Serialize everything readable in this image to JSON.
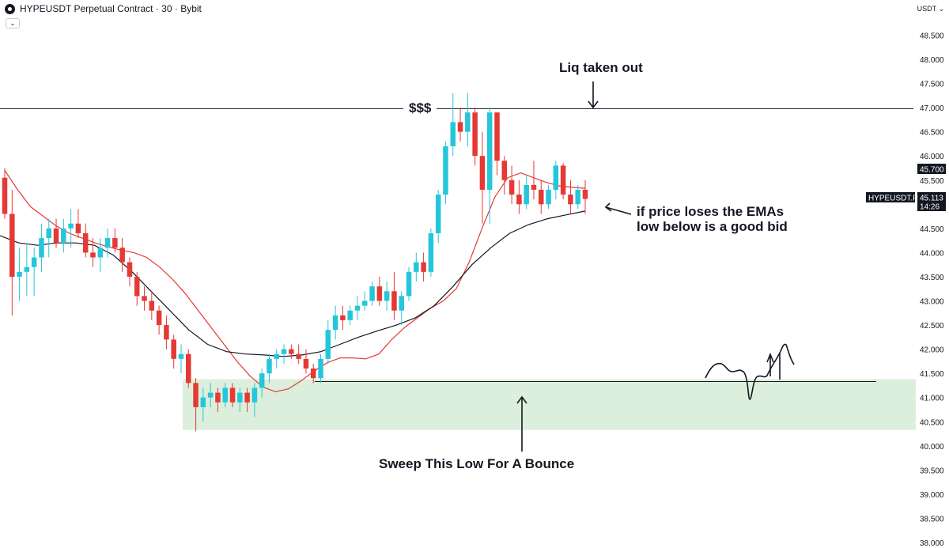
{
  "header": {
    "symbol_title": "HYPEUSDT Perpetual Contract · 30 · Bybit",
    "currency": "USDT"
  },
  "chart_data": {
    "type": "candlestick",
    "symbol": "HYPEUSDT",
    "exchange": "Bybit",
    "interval": "30",
    "ylim": [
      38.0,
      48.9
    ],
    "y_ticks": [
      "48.500",
      "48.000",
      "47.500",
      "47.000",
      "46.500",
      "46.000",
      "45.500",
      "45.000",
      "44.500",
      "44.000",
      "43.500",
      "43.000",
      "42.500",
      "42.000",
      "41.500",
      "41.000",
      "40.500",
      "40.000",
      "39.500",
      "39.000",
      "38.500",
      "38.000"
    ],
    "price_labels": [
      {
        "text": "45.700",
        "value": 45.7,
        "bg": "#131722",
        "fg": "#ffffff"
      },
      {
        "text": "45.113",
        "value": 45.113,
        "bg": "#131722",
        "fg": "#ffffff"
      },
      {
        "text": "14:26",
        "value": 44.99,
        "bg": "#131722",
        "fg": "#ffffff"
      }
    ],
    "symbol_tag": "HYPEUSDT.P",
    "colors": {
      "up": "#26c6da",
      "down": "#e53935",
      "ema_fast": "#e53935",
      "ema_slow": "#131722",
      "zone": "#dcefdc"
    },
    "candles": [
      [
        45.55,
        45.75,
        44.7,
        44.8
      ],
      [
        44.8,
        45.3,
        42.7,
        43.5
      ],
      [
        43.5,
        44.1,
        43.0,
        43.6
      ],
      [
        43.6,
        44.2,
        43.1,
        43.7
      ],
      [
        43.7,
        44.1,
        43.1,
        43.9
      ],
      [
        43.9,
        44.6,
        43.6,
        44.3
      ],
      [
        44.3,
        44.7,
        43.9,
        44.5
      ],
      [
        44.5,
        44.7,
        44.1,
        44.2
      ],
      [
        44.2,
        44.7,
        44.0,
        44.5
      ],
      [
        44.5,
        44.9,
        44.1,
        44.6
      ],
      [
        44.6,
        44.9,
        44.3,
        44.4
      ],
      [
        44.4,
        44.6,
        43.9,
        44.0
      ],
      [
        44.0,
        44.3,
        43.7,
        43.9
      ],
      [
        43.9,
        44.3,
        43.6,
        44.1
      ],
      [
        44.1,
        44.5,
        43.9,
        44.3
      ],
      [
        44.3,
        44.5,
        44.0,
        44.1
      ],
      [
        44.1,
        44.3,
        43.6,
        43.8
      ],
      [
        43.8,
        43.9,
        43.3,
        43.5
      ],
      [
        43.5,
        43.6,
        42.9,
        43.1
      ],
      [
        43.1,
        43.3,
        42.8,
        43.0
      ],
      [
        43.0,
        43.2,
        42.6,
        42.8
      ],
      [
        42.8,
        42.9,
        42.3,
        42.5
      ],
      [
        42.5,
        42.7,
        42.0,
        42.2
      ],
      [
        42.2,
        42.3,
        41.6,
        41.8
      ],
      [
        41.8,
        42.1,
        41.5,
        41.9
      ],
      [
        41.9,
        42.0,
        41.2,
        41.3
      ],
      [
        41.3,
        41.4,
        40.3,
        40.8
      ],
      [
        40.8,
        41.2,
        40.5,
        41.0
      ],
      [
        41.0,
        41.3,
        40.8,
        41.1
      ],
      [
        41.1,
        41.2,
        40.7,
        40.9
      ],
      [
        40.9,
        41.3,
        40.8,
        41.2
      ],
      [
        41.2,
        41.3,
        40.8,
        40.9
      ],
      [
        40.9,
        41.2,
        40.7,
        41.1
      ],
      [
        41.1,
        41.2,
        40.7,
        40.9
      ],
      [
        40.9,
        41.3,
        40.6,
        41.2
      ],
      [
        41.2,
        41.6,
        41.0,
        41.5
      ],
      [
        41.5,
        41.9,
        41.3,
        41.8
      ],
      [
        41.8,
        42.0,
        41.6,
        41.9
      ],
      [
        41.9,
        42.1,
        41.7,
        42.0
      ],
      [
        42.0,
        42.1,
        41.8,
        41.9
      ],
      [
        41.9,
        42.1,
        41.7,
        41.8
      ],
      [
        41.8,
        42.0,
        41.5,
        41.6
      ],
      [
        41.6,
        41.7,
        41.3,
        41.4
      ],
      [
        41.4,
        41.9,
        41.3,
        41.8
      ],
      [
        41.8,
        42.6,
        41.7,
        42.4
      ],
      [
        42.4,
        42.9,
        42.2,
        42.7
      ],
      [
        42.7,
        42.9,
        42.4,
        42.6
      ],
      [
        42.6,
        42.9,
        42.5,
        42.8
      ],
      [
        42.8,
        43.1,
        42.6,
        42.9
      ],
      [
        42.9,
        43.2,
        42.8,
        43.0
      ],
      [
        43.0,
        43.4,
        42.9,
        43.3
      ],
      [
        43.3,
        43.5,
        42.9,
        43.0
      ],
      [
        43.0,
        43.4,
        42.8,
        43.2
      ],
      [
        43.2,
        43.6,
        42.6,
        42.8
      ],
      [
        42.8,
        43.2,
        42.5,
        43.1
      ],
      [
        43.1,
        43.7,
        43.0,
        43.6
      ],
      [
        43.6,
        44.0,
        43.4,
        43.8
      ],
      [
        43.8,
        44.0,
        43.4,
        43.6
      ],
      [
        43.6,
        44.5,
        43.5,
        44.4
      ],
      [
        44.4,
        45.3,
        44.2,
        45.2
      ],
      [
        45.2,
        46.3,
        45.0,
        46.2
      ],
      [
        46.2,
        47.3,
        46.0,
        46.7
      ],
      [
        46.7,
        47.0,
        46.3,
        46.5
      ],
      [
        46.5,
        47.3,
        46.2,
        46.9
      ],
      [
        46.9,
        47.0,
        45.8,
        46.0
      ],
      [
        46.0,
        46.5,
        44.6,
        45.3
      ],
      [
        45.3,
        47.0,
        44.6,
        46.9
      ],
      [
        46.9,
        46.9,
        45.6,
        45.9
      ],
      [
        45.9,
        46.0,
        45.2,
        45.5
      ],
      [
        45.5,
        45.8,
        45.0,
        45.2
      ],
      [
        45.2,
        45.5,
        44.8,
        45.0
      ],
      [
        45.0,
        45.6,
        44.9,
        45.4
      ],
      [
        45.4,
        45.9,
        45.1,
        45.3
      ],
      [
        45.3,
        45.5,
        44.8,
        45.0
      ],
      [
        45.0,
        45.4,
        44.9,
        45.3
      ],
      [
        45.3,
        45.9,
        45.1,
        45.8
      ],
      [
        45.8,
        45.85,
        45.1,
        45.2
      ],
      [
        45.2,
        45.5,
        44.8,
        45.0
      ],
      [
        45.0,
        45.4,
        44.9,
        45.3
      ],
      [
        45.3,
        45.5,
        44.8,
        45.11
      ]
    ],
    "ema_fast": [
      45.7,
      45.3,
      44.95,
      44.75,
      44.55,
      44.4,
      44.3,
      44.2,
      44.12,
      44.05,
      44.0,
      43.9,
      43.7,
      43.45,
      43.15,
      42.8,
      42.45,
      42.1,
      41.75,
      41.45,
      41.22,
      41.12,
      41.18,
      41.35,
      41.55,
      41.72,
      41.82,
      41.82,
      41.8,
      41.9,
      42.2,
      42.45,
      42.65,
      42.85,
      43.0,
      43.25,
      43.8,
      44.5,
      45.15,
      45.55,
      45.65,
      45.55,
      45.45,
      45.38,
      45.35,
      45.33
    ],
    "ema_slow": [
      44.35,
      44.2,
      44.15,
      44.2,
      44.2,
      44.15,
      43.95,
      43.6,
      43.2,
      42.8,
      42.4,
      42.1,
      41.95,
      41.9,
      41.88,
      41.85,
      41.88,
      41.95,
      42.1,
      42.25,
      42.38,
      42.5,
      42.65,
      42.9,
      43.3,
      43.75,
      44.1,
      44.4,
      44.58,
      44.7,
      44.78,
      44.86
    ],
    "horizontal_line": {
      "value": 46.98,
      "label": "$$$"
    },
    "low_line": {
      "value": 41.33
    },
    "zone": {
      "top": 41.38,
      "bottom": 40.33
    },
    "annotations": [
      {
        "text": "Liq taken out"
      },
      {
        "text": "if price loses the EMAs"
      },
      {
        "text": "low below is a good bid"
      },
      {
        "text": "Sweep This Low For A Bounce"
      }
    ]
  }
}
